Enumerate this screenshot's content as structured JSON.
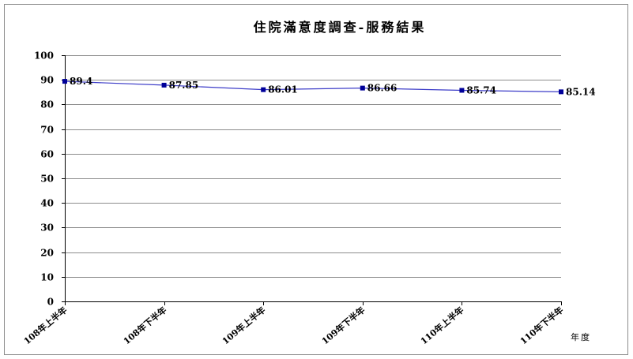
{
  "chart_data": {
    "type": "line",
    "title": "住院滿意度調查-服務結果",
    "xlabel": "年度",
    "ylabel": "",
    "categories": [
      "108年上半年",
      "108年下半年",
      "109年上半年",
      "109年下半年",
      "110年上半年",
      "110年下半年"
    ],
    "series": [
      {
        "values": [
          89.4,
          87.85,
          86.01,
          86.66,
          85.74,
          85.14
        ]
      }
    ],
    "ylim": [
      0,
      100
    ],
    "yticks": [
      0,
      10,
      20,
      30,
      40,
      50,
      60,
      70,
      80,
      90,
      100
    ],
    "grid": true,
    "legend": "none",
    "data_labels": true
  },
  "colors": {
    "line": "#3c3cc8",
    "marker": "#000099",
    "grid": "#8c8c8c",
    "frame": "#8c8c8c",
    "axis": "#000000"
  }
}
